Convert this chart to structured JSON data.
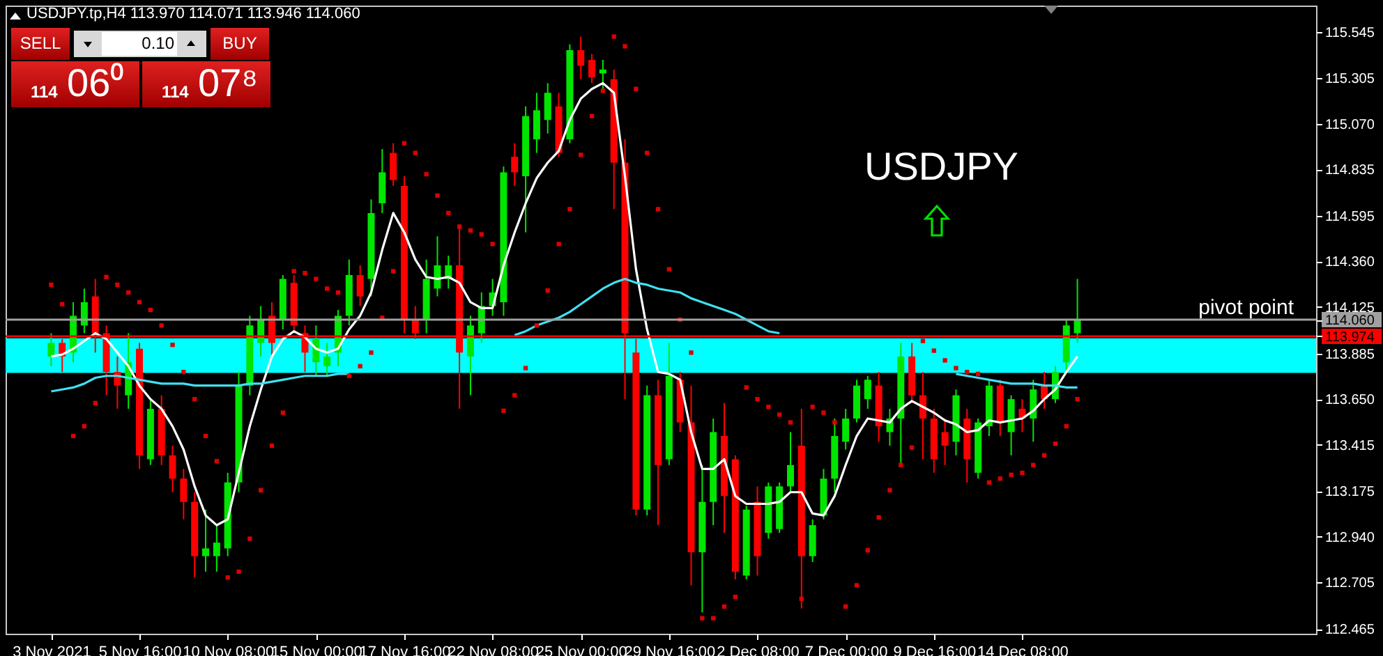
{
  "chart_data": {
    "type": "candlestick",
    "title": "USDJPY.tp,H4  113.970 114.071 113.946 114.060",
    "categories": [
      "3 Nov 2021",
      null,
      null,
      null,
      null,
      null,
      null,
      null,
      "5 Nov 16:00",
      null,
      null,
      null,
      null,
      null,
      null,
      null,
      "10 Nov 08:00",
      null,
      null,
      null,
      null,
      null,
      null,
      null,
      "15 Nov 00:00",
      null,
      null,
      null,
      null,
      null,
      null,
      null,
      "17 Nov 16:00",
      null,
      null,
      null,
      null,
      null,
      null,
      null,
      "22 Nov 08:00",
      null,
      null,
      null,
      null,
      null,
      null,
      null,
      "25 Nov 00:00",
      null,
      null,
      null,
      null,
      null,
      null,
      null,
      "29 Nov 16:00",
      null,
      null,
      null,
      null,
      null,
      null,
      null,
      "2 Dec 08:00",
      null,
      null,
      null,
      null,
      null,
      null,
      null,
      "7 Dec 00:00",
      null,
      null,
      null,
      null,
      null,
      null,
      null,
      "9 Dec 16:00",
      null,
      null,
      null,
      null,
      null,
      null,
      null,
      "14 Dec 08:00",
      null,
      null,
      null,
      null,
      null
    ],
    "ohlc": [
      [
        113.87,
        113.99,
        113.82,
        113.94
      ],
      [
        113.94,
        113.96,
        113.79,
        113.87
      ],
      [
        113.89,
        114.15,
        113.84,
        114.08
      ],
      [
        114.03,
        114.22,
        113.99,
        114.15
      ],
      [
        114.18,
        114.27,
        113.89,
        113.99
      ],
      [
        113.99,
        114.03,
        113.67,
        113.79
      ],
      [
        113.79,
        113.87,
        113.6,
        113.72
      ],
      [
        113.67,
        113.99,
        113.6,
        113.84
      ],
      [
        113.91,
        113.94,
        113.29,
        113.36
      ],
      [
        113.34,
        113.65,
        113.31,
        113.6
      ],
      [
        113.6,
        113.67,
        113.31,
        113.36
      ],
      [
        113.36,
        113.41,
        113.17,
        113.24
      ],
      [
        113.24,
        113.29,
        113.03,
        113.12
      ],
      [
        113.12,
        113.17,
        112.73,
        112.84
      ],
      [
        112.84,
        113.08,
        112.76,
        112.88
      ],
      [
        112.84,
        113.0,
        112.76,
        112.91
      ],
      [
        112.88,
        113.27,
        112.84,
        113.22
      ],
      [
        113.22,
        113.79,
        113.17,
        113.72
      ],
      [
        113.72,
        114.08,
        113.67,
        114.03
      ],
      [
        113.94,
        114.13,
        113.87,
        114.06
      ],
      [
        114.08,
        114.15,
        113.87,
        113.94
      ],
      [
        114.06,
        114.29,
        114.01,
        114.27
      ],
      [
        114.25,
        114.29,
        113.99,
        114.03
      ],
      [
        113.99,
        114.03,
        113.79,
        113.89
      ],
      [
        113.84,
        114.03,
        113.77,
        113.96
      ],
      [
        113.82,
        113.94,
        113.77,
        113.87
      ],
      [
        113.89,
        114.11,
        113.82,
        114.08
      ],
      [
        114.08,
        114.37,
        114.03,
        114.29
      ],
      [
        114.29,
        114.34,
        114.13,
        114.18
      ],
      [
        114.27,
        114.68,
        114.18,
        114.61
      ],
      [
        114.66,
        114.94,
        114.61,
        114.82
      ],
      [
        114.92,
        114.97,
        114.75,
        114.78
      ],
      [
        114.75,
        114.8,
        113.99,
        114.06
      ],
      [
        114.06,
        114.13,
        113.96,
        113.99
      ],
      [
        114.06,
        114.37,
        113.99,
        114.27
      ],
      [
        114.22,
        114.49,
        114.18,
        114.34
      ],
      [
        114.27,
        114.39,
        114.22,
        114.34
      ],
      [
        114.34,
        114.54,
        113.6,
        113.89
      ],
      [
        113.87,
        114.08,
        113.67,
        114.03
      ],
      [
        113.99,
        114.2,
        113.94,
        114.13
      ],
      [
        114.13,
        114.27,
        114.08,
        114.2
      ],
      [
        114.15,
        114.85,
        114.08,
        114.82
      ],
      [
        114.9,
        114.97,
        114.75,
        114.82
      ],
      [
        114.8,
        115.16,
        114.51,
        115.11
      ],
      [
        114.99,
        115.23,
        114.92,
        115.14
      ],
      [
        115.09,
        115.28,
        115.02,
        115.23
      ],
      [
        115.16,
        115.23,
        114.9,
        114.92
      ],
      [
        114.99,
        115.48,
        114.97,
        115.45
      ],
      [
        115.45,
        115.52,
        115.3,
        115.37
      ],
      [
        115.4,
        115.43,
        115.28,
        115.31
      ],
      [
        115.33,
        115.4,
        115.25,
        115.35
      ],
      [
        115.3,
        115.35,
        114.63,
        114.87
      ],
      [
        114.87,
        114.99,
        113.65,
        113.99
      ],
      [
        113.89,
        113.96,
        113.05,
        113.08
      ],
      [
        113.08,
        113.72,
        113.05,
        113.67
      ],
      [
        113.67,
        113.75,
        113.0,
        113.31
      ],
      [
        113.34,
        113.94,
        113.31,
        113.77
      ],
      [
        113.75,
        113.79,
        113.48,
        113.53
      ],
      [
        113.53,
        113.72,
        112.69,
        112.86
      ],
      [
        112.86,
        113.31,
        112.55,
        113.12
      ],
      [
        113.12,
        113.55,
        113.0,
        113.48
      ],
      [
        113.46,
        113.63,
        112.96,
        113.15
      ],
      [
        113.34,
        113.36,
        112.72,
        112.76
      ],
      [
        112.74,
        113.1,
        112.72,
        113.08
      ],
      [
        113.12,
        113.2,
        112.74,
        112.84
      ],
      [
        112.96,
        113.22,
        112.93,
        113.2
      ],
      [
        112.98,
        113.22,
        112.96,
        113.2
      ],
      [
        113.2,
        113.48,
        113.17,
        113.31
      ],
      [
        113.41,
        113.6,
        112.57,
        112.84
      ],
      [
        112.84,
        113.03,
        112.81,
        113.0
      ],
      [
        113.05,
        113.29,
        113.03,
        113.24
      ],
      [
        113.24,
        113.55,
        113.17,
        113.46
      ],
      [
        113.43,
        113.6,
        113.39,
        113.55
      ],
      [
        113.55,
        113.75,
        113.53,
        113.72
      ],
      [
        113.65,
        113.77,
        113.6,
        113.75
      ],
      [
        113.72,
        113.79,
        113.43,
        113.51
      ],
      [
        113.48,
        113.6,
        113.41,
        113.55
      ],
      [
        113.55,
        113.94,
        113.31,
        113.87
      ],
      [
        113.87,
        113.94,
        113.63,
        113.67
      ],
      [
        113.67,
        113.79,
        113.34,
        113.55
      ],
      [
        113.55,
        113.6,
        113.27,
        113.34
      ],
      [
        113.48,
        113.55,
        113.31,
        113.41
      ],
      [
        113.43,
        113.7,
        113.36,
        113.67
      ],
      [
        113.55,
        113.6,
        113.22,
        113.34
      ],
      [
        113.27,
        113.55,
        113.24,
        113.53
      ],
      [
        113.51,
        113.75,
        113.46,
        113.72
      ],
      [
        113.72,
        113.75,
        113.46,
        113.53
      ],
      [
        113.48,
        113.67,
        113.36,
        113.65
      ],
      [
        113.6,
        113.65,
        113.48,
        113.55
      ],
      [
        113.55,
        113.75,
        113.43,
        113.7
      ],
      [
        113.72,
        113.79,
        113.6,
        113.65
      ],
      [
        113.65,
        113.82,
        113.63,
        113.79
      ],
      [
        113.84,
        114.06,
        113.79,
        114.03
      ],
      [
        113.99,
        114.27,
        113.94,
        114.06
      ]
    ],
    "colors": [
      "#00e600",
      "#ff0000",
      "#00e600",
      "#00e600",
      "#ff0000",
      "#ff0000",
      "#ff0000",
      "#00e600",
      "#ff0000",
      "#00e600",
      "#ff0000",
      "#ff0000",
      "#ff0000",
      "#ff0000",
      "#00e600",
      "#00e600",
      "#00e600",
      "#00e600",
      "#00e600",
      "#00e600",
      "#ff0000",
      "#00e600",
      "#ff0000",
      "#ff0000",
      "#00e600",
      "#00e600",
      "#00e600",
      "#00e600",
      "#ff0000",
      "#00e600",
      "#00e600",
      "#ff0000",
      "#ff0000",
      "#ff0000",
      "#00e600",
      "#00e600",
      "#00e600",
      "#ff0000",
      "#00e600",
      "#00e600",
      "#00e600",
      "#00e600",
      "#ff0000",
      "#00e600",
      "#00e600",
      "#00e600",
      "#ff0000",
      "#00e600",
      "#ff0000",
      "#ff0000",
      "#00e600",
      "#ff0000",
      "#ff0000",
      "#ff0000",
      "#00e600",
      "#ff0000",
      "#00e600",
      "#ff0000",
      "#ff0000",
      "#00e600",
      "#00e600",
      "#ff0000",
      "#ff0000",
      "#00e600",
      "#ff0000",
      "#00e600",
      "#00e600",
      "#00e600",
      "#ff0000",
      "#00e600",
      "#00e600",
      "#00e600",
      "#00e600",
      "#00e600",
      "#00e600",
      "#ff0000",
      "#00e600",
      "#00e600",
      "#ff0000",
      "#ff0000",
      "#ff0000",
      "#ff0000",
      "#00e600",
      "#ff0000",
      "#00e600",
      "#00e600",
      "#ff0000",
      "#00e600",
      "#ff0000",
      "#00e600",
      "#ff0000",
      "#00e600",
      "#00e600",
      "#00e600"
    ],
    "series": [
      {
        "type": "line",
        "color": "#ffffff",
        "values": [
          113.87,
          113.88,
          113.91,
          113.95,
          113.99,
          113.96,
          113.89,
          113.82,
          113.72,
          113.65,
          113.6,
          113.51,
          113.39,
          113.2,
          113.05,
          113.0,
          113.03,
          113.27,
          113.51,
          113.7,
          113.87,
          113.96,
          114.0,
          113.97,
          113.91,
          113.89,
          113.91,
          114.01,
          114.08,
          114.2,
          114.42,
          114.61,
          114.51,
          114.37,
          114.28,
          114.27,
          114.28,
          114.25,
          114.15,
          114.12,
          114.12,
          114.34,
          114.51,
          114.66,
          114.79,
          114.87,
          114.93,
          115.09,
          115.2,
          115.25,
          115.28,
          115.23,
          114.8,
          114.32,
          114.01,
          113.79,
          113.78,
          113.75,
          113.48,
          113.29,
          113.29,
          113.34,
          113.15,
          113.11,
          113.11,
          113.11,
          113.12,
          113.17,
          113.17,
          113.06,
          113.05,
          113.15,
          113.31,
          113.46,
          113.55,
          113.54,
          113.53,
          113.6,
          113.64,
          113.61,
          113.58,
          113.54,
          113.52,
          113.48,
          113.49,
          113.54,
          113.53,
          113.54,
          113.55,
          113.59,
          113.65,
          113.7,
          113.79,
          113.87
        ]
      },
      {
        "type": "line",
        "color": "#40e0f0",
        "values": [
          113.69,
          113.7,
          113.71,
          113.73,
          113.76,
          113.77,
          113.77,
          113.76,
          113.75,
          113.74,
          113.73,
          113.73,
          113.73,
          113.72,
          113.72,
          113.72,
          113.72,
          113.72,
          113.73,
          113.73,
          113.74,
          113.75,
          113.76,
          113.77,
          113.77,
          113.77,
          113.78,
          113.78,
          null,
          null,
          null,
          null,
          null,
          null,
          null,
          null,
          null,
          null,
          null,
          null,
          null,
          null,
          113.98,
          114.0,
          114.03,
          114.05,
          114.07,
          114.1,
          114.14,
          114.18,
          114.22,
          114.25,
          114.27,
          114.25,
          114.24,
          114.22,
          114.21,
          114.2,
          114.17,
          114.15,
          114.13,
          114.11,
          114.09,
          114.06,
          114.03,
          114.0,
          113.99,
          null,
          null,
          null,
          null,
          null,
          null,
          null,
          null,
          null,
          null,
          null,
          null,
          null,
          null,
          null,
          113.78,
          113.77,
          113.76,
          113.75,
          113.74,
          113.73,
          113.73,
          113.73,
          113.72,
          113.72,
          113.71,
          113.71
        ]
      },
      {
        "type": "scatter",
        "marker": "square",
        "color": "#dd0000",
        "values": [
          114.24,
          114.14,
          113.46,
          113.51,
          113.63,
          114.28,
          114.24,
          114.2,
          114.15,
          114.11,
          114.03,
          113.93,
          113.79,
          113.65,
          113.46,
          113.33,
          112.73,
          112.76,
          112.93,
          113.18,
          113.41,
          113.58,
          114.31,
          114.3,
          114.27,
          114.22,
          114.2,
          113.77,
          113.82,
          113.89,
          114.07,
          114.31,
          114.97,
          114.92,
          114.81,
          114.7,
          114.61,
          114.54,
          114.52,
          114.5,
          114.45,
          113.59,
          113.67,
          113.81,
          114.03,
          114.21,
          114.45,
          114.63,
          114.91,
          115.11,
          115.24,
          115.52,
          115.47,
          115.25,
          114.92,
          114.63,
          114.32,
          114.06,
          113.89,
          112.52,
          112.52,
          112.58,
          112.63,
          113.71,
          113.65,
          113.61,
          113.57,
          113.53,
          112.62,
          113.61,
          113.58,
          113.53,
          112.58,
          112.69,
          112.87,
          113.04,
          113.18,
          113.31,
          113.4,
          113.95,
          113.9,
          113.85,
          113.81,
          113.79,
          113.78,
          113.22,
          113.24,
          113.26,
          113.27,
          113.31,
          113.36,
          113.42,
          113.51,
          113.65
        ]
      }
    ],
    "ylim": [
      112.44,
      115.68
    ],
    "yticks": [
      112.465,
      112.705,
      {
        "value": 112.94,
        "label": "112.940"
      },
      113.175,
      113.415,
      {
        "value": 113.65,
        "label": "113.650"
      },
      113.885,
      {
        "value": 113.974,
        "label": "113.974"
      },
      {
        "value": 114.06,
        "label": "114.060"
      },
      114.125,
      {
        "value": 114.36,
        "label": "114.360"
      },
      114.595,
      114.835,
      {
        "value": 115.07,
        "label": "115.070"
      },
      115.305,
      115.545
    ],
    "bands": [
      {
        "axis": "y",
        "from": 113.785,
        "to": 113.964,
        "color": "#00ffff"
      }
    ],
    "ref_lines": [
      {
        "axis": "y",
        "value": 114.06,
        "label": "pivot point",
        "color": "#a0a0a0"
      },
      {
        "axis": "y",
        "value": 113.974,
        "color": "#ff0000"
      }
    ],
    "annotations": [
      "USDJPY",
      "SELL",
      "0.10",
      "BUY",
      "114 06⁰",
      "114 07⁸"
    ]
  }
}
